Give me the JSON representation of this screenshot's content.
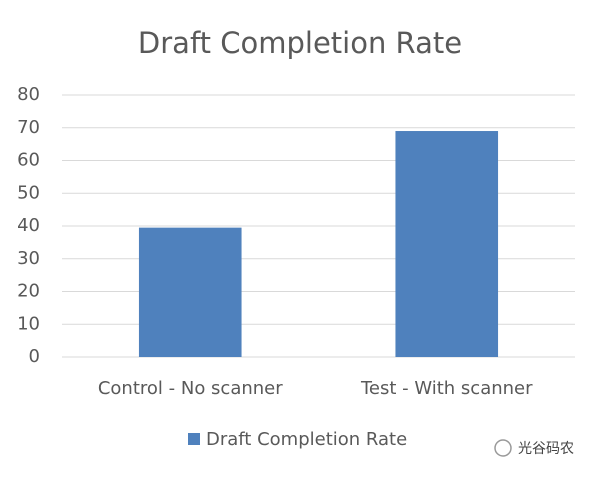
{
  "chart_data": {
    "type": "bar",
    "title": "Draft Completion Rate",
    "categories": [
      "Control - No scanner",
      "Test - With scanner"
    ],
    "series": [
      {
        "name": "Draft Completion Rate",
        "color": "#4f81bd",
        "values": [
          39.5,
          69
        ]
      }
    ],
    "ylim": [
      0,
      80
    ],
    "yticks": [
      0,
      10,
      20,
      30,
      40,
      50,
      60,
      70,
      80
    ],
    "grid": true,
    "legend": "bottom",
    "watermark": "光谷码农"
  }
}
